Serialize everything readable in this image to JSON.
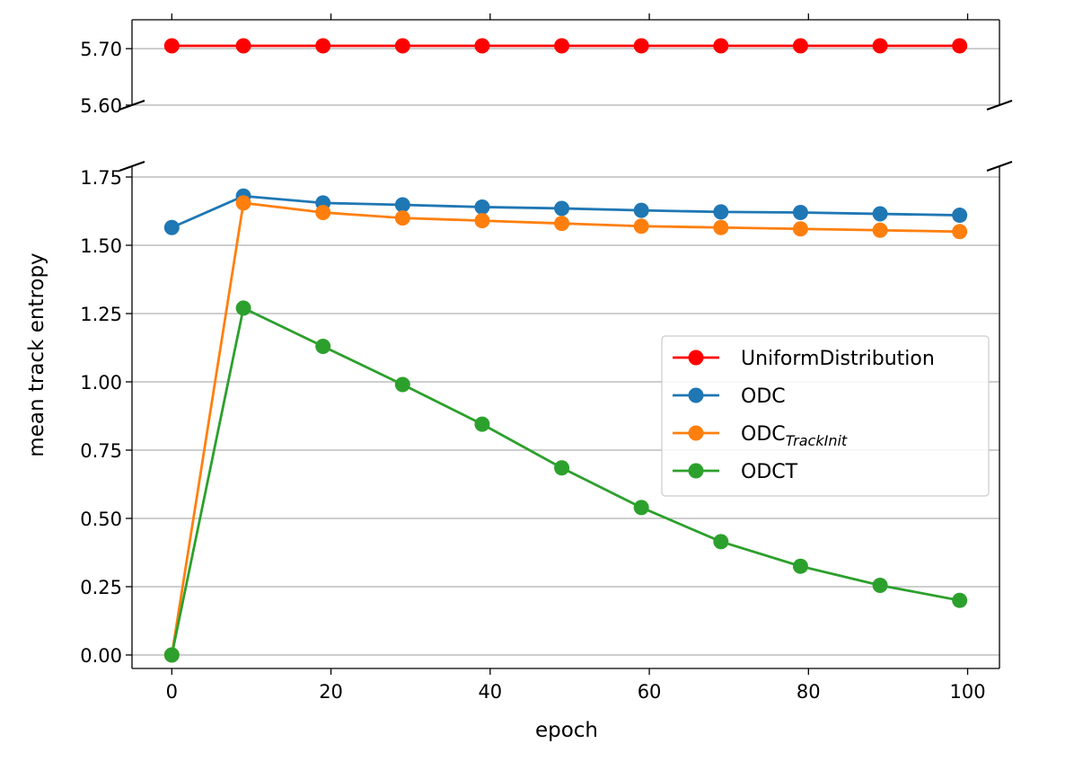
{
  "chart_data": {
    "type": "line",
    "xlabel": "epoch",
    "ylabel": "mean track entropy",
    "x": [
      0,
      9,
      19,
      29,
      39,
      49,
      59,
      69,
      79,
      89,
      99
    ],
    "xlim": [
      -5,
      104
    ],
    "xticks": [
      0,
      20,
      40,
      60,
      80,
      100
    ],
    "xtick_labels": [
      "0",
      "20",
      "40",
      "60",
      "80",
      "100"
    ],
    "broken_y_axis": true,
    "upper_panel": {
      "ylim": [
        5.6,
        5.75
      ],
      "yticks": [
        5.6,
        5.7
      ],
      "ytick_labels": [
        "5.60",
        "5.70"
      ]
    },
    "lower_panel": {
      "ylim": [
        -0.1,
        1.8
      ],
      "yticks": [
        0,
        0.25,
        0.5,
        0.75,
        1.0,
        1.25,
        1.5,
        1.75
      ],
      "ytick_labels": [
        "0.00",
        "0.25",
        "0.50",
        "0.75",
        "1.00",
        "1.25",
        "1.50",
        "1.75"
      ]
    },
    "grid": "horizontal",
    "legend_position": "center-right",
    "series": [
      {
        "name": "UniformDistribution",
        "label_main": "UniformDistribution",
        "label_sub": "",
        "color": "#ff0000",
        "panel": "upper",
        "values": [
          5.705,
          5.705,
          5.705,
          5.705,
          5.705,
          5.705,
          5.705,
          5.705,
          5.705,
          5.705,
          5.705
        ]
      },
      {
        "name": "ODC",
        "label_main": "ODC",
        "label_sub": "",
        "color": "#1f77b4",
        "panel": "lower",
        "values": [
          1.565,
          1.68,
          1.655,
          1.648,
          1.64,
          1.635,
          1.628,
          1.622,
          1.62,
          1.615,
          1.61
        ]
      },
      {
        "name": "ODC_TrackInit",
        "label_main": "ODC",
        "label_sub": "TrackInit",
        "color": "#ff7f0e",
        "panel": "lower",
        "values": [
          0.0,
          1.655,
          1.62,
          1.6,
          1.59,
          1.58,
          1.57,
          1.565,
          1.56,
          1.555,
          1.55
        ]
      },
      {
        "name": "ODCT",
        "label_main": "ODCT",
        "label_sub": "",
        "color": "#2ca02c",
        "panel": "lower",
        "values": [
          0.0,
          1.27,
          1.13,
          0.99,
          0.845,
          0.685,
          0.54,
          0.415,
          0.325,
          0.255,
          0.2
        ]
      }
    ]
  }
}
